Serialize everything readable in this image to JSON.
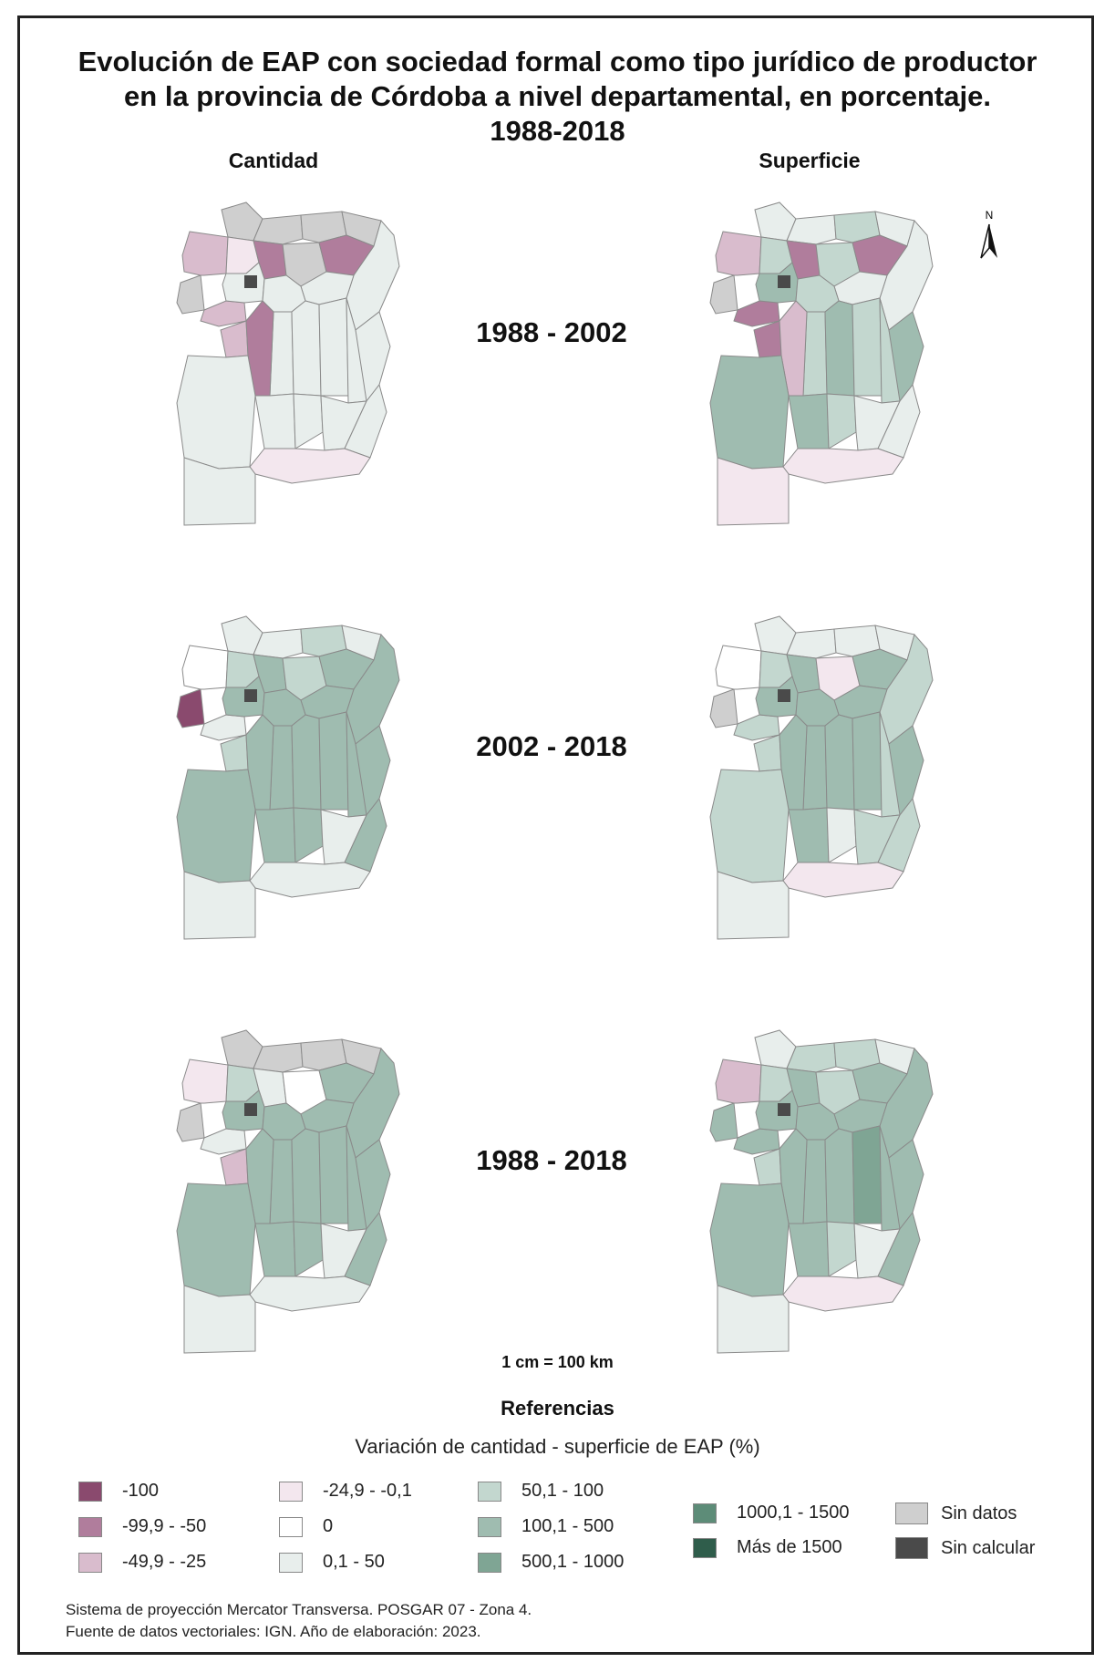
{
  "title": {
    "line1": "Evolución de EAP con sociedad formal como tipo jurídico de productor",
    "line2": "en la provincia de Córdoba a nivel departamental, en porcentaje.",
    "line3": "1988-2018"
  },
  "columns": {
    "left": "Cantidad",
    "right": "Superficie"
  },
  "periods": [
    "1988 - 2002",
    "2002 - 2018",
    "1988 - 2018"
  ],
  "north_label": "N",
  "scale": "1 cm = 100 km",
  "legend": {
    "title": "Referencias",
    "subtitle": "Variación de cantidad - superficie de EAP (%)",
    "items": [
      {
        "label": "-100",
        "color": "#8a4a6e"
      },
      {
        "label": "-99,9 - -50",
        "color": "#b07d9c"
      },
      {
        "label": "-49,9 - -25",
        "color": "#d9bccd"
      },
      {
        "label": "-24,9 - -0,1",
        "color": "#f3e7ee"
      },
      {
        "label": "0",
        "color": "#ffffff"
      },
      {
        "label": "0,1 - 50",
        "color": "#e8eeec"
      },
      {
        "label": "50,1 - 100",
        "color": "#c3d7cf"
      },
      {
        "label": "100,1 - 500",
        "color": "#9fbcb0"
      },
      {
        "label": "500,1 - 1000",
        "color": "#7fa594"
      },
      {
        "label": "1000,1 - 1500",
        "color": "#5d8c78"
      },
      {
        "label": "Más de 1500",
        "color": "#2f5d4b"
      },
      {
        "label": "Sin datos",
        "color": "#cfcfcf"
      },
      {
        "label": "Sin calcular",
        "color": "#4a4a4a"
      }
    ]
  },
  "footer": {
    "line1": "Sistema de proyección Mercator Transversa. POSGAR 07 - Zona 4.",
    "line2": "Fuente de datos vectoriales: IGN. Año de elaboración: 2023."
  },
  "maps": [
    {
      "row": 0,
      "col": "cantidad",
      "classes": [
        "sd",
        "sd",
        "sd",
        "sd",
        "sd",
        "n2",
        "n1",
        "n3",
        "sd",
        "n3",
        "p0",
        "p0",
        "n2",
        "p0",
        "p0",
        "p0",
        "p0",
        "p0",
        "n2",
        "n3",
        "p0",
        "p0",
        "p0",
        "p0",
        "p0",
        "p0",
        "p0",
        "n1",
        "p0"
      ]
    },
    {
      "row": 0,
      "col": "superficie",
      "classes": [
        "p0",
        "p0",
        "p1",
        "p0",
        "sd",
        "n2",
        "p1",
        "n3",
        "p1",
        "n3",
        "p0",
        "p0",
        "n3",
        "p2",
        "p1",
        "p1",
        "p2",
        "p1",
        "n3",
        "n2",
        "p1",
        "p2",
        "p2",
        "p2",
        "p1",
        "p0",
        "p0",
        "n1",
        "n1"
      ]
    },
    {
      "row": 1,
      "col": "cantidad",
      "classes": [
        "p0",
        "p0",
        "p1",
        "p0",
        "n4",
        "z0",
        "p1",
        "p2",
        "p1",
        "p2",
        "p2",
        "p2",
        "p0",
        "p2",
        "p2",
        "p2",
        "p2",
        "p2",
        "p1",
        "p2",
        "p2",
        "p2",
        "p2",
        "p2",
        "p2",
        "p0",
        "p2",
        "p0",
        "p0"
      ]
    },
    {
      "row": 1,
      "col": "superficie",
      "classes": [
        "p0",
        "p0",
        "p0",
        "p0",
        "sd",
        "z0",
        "p1",
        "p2",
        "n1",
        "p2",
        "p1",
        "p2",
        "p1",
        "p2",
        "p2",
        "p2",
        "p2",
        "p2",
        "p1",
        "p2",
        "p1",
        "p2",
        "p1",
        "p2",
        "p0",
        "p1",
        "p1",
        "n1",
        "p0"
      ]
    },
    {
      "row": 2,
      "col": "cantidad",
      "classes": [
        "sd",
        "sd",
        "sd",
        "sd",
        "sd",
        "n1",
        "p1",
        "p0",
        "z0",
        "p2",
        "p2",
        "p2",
        "p0",
        "p2",
        "p2",
        "p2",
        "p2",
        "p2",
        "n2",
        "p2",
        "p2",
        "p2",
        "p2",
        "p2",
        "p2",
        "p0",
        "p2",
        "p0",
        "p0"
      ]
    },
    {
      "row": 2,
      "col": "superficie",
      "classes": [
        "p0",
        "p1",
        "p1",
        "p0",
        "p2",
        "n2",
        "p1",
        "p2",
        "p1",
        "p2",
        "p2",
        "p2",
        "p2",
        "p2",
        "p2",
        "p2",
        "p2",
        "p3",
        "p1",
        "p2",
        "p2",
        "p2",
        "p2",
        "p2",
        "p1",
        "p0",
        "p2",
        "n1",
        "p0"
      ]
    }
  ]
}
